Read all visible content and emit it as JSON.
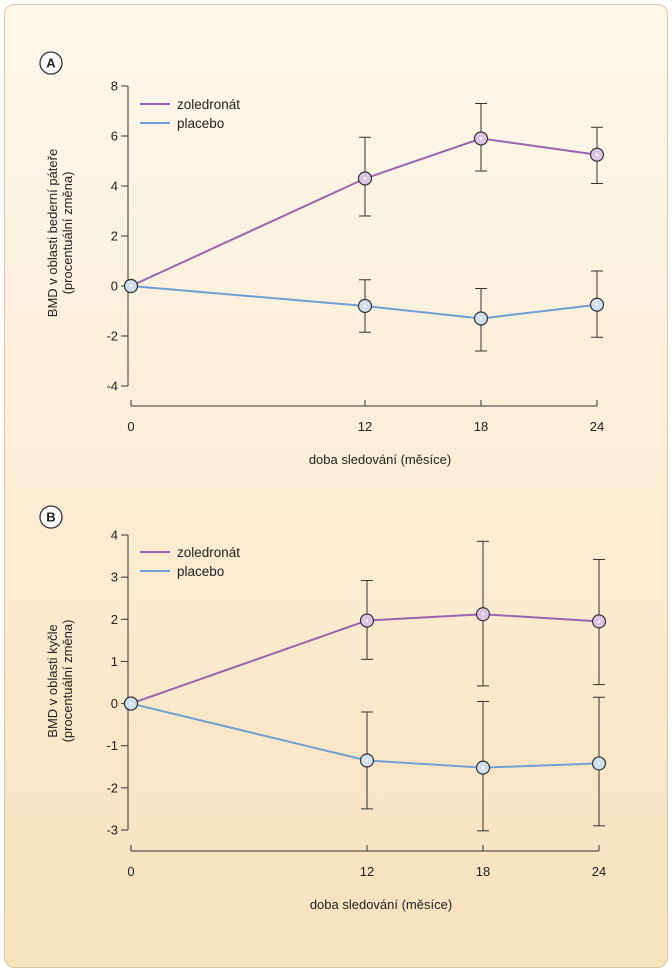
{
  "chart_data": [
    {
      "type": "line",
      "panel_label": "A",
      "xlabel": "doba sledování (měsíce)",
      "ylabel": [
        "BMD v oblasti bederní páteře",
        "(procentuální změna)"
      ],
      "x": [
        0,
        12,
        18,
        24
      ],
      "x_ticks": [
        "0",
        "12",
        "18",
        "24"
      ],
      "ylim": [
        -4,
        8
      ],
      "y_ticks": [
        8,
        6,
        4,
        2,
        0,
        -2,
        -4
      ],
      "legend_position": "top-left",
      "series": [
        {
          "name": "zoledronát",
          "color": "#9b64b0",
          "values": [
            0,
            4.3,
            5.9,
            5.25
          ],
          "err_low": [
            0,
            2.8,
            4.6,
            4.1
          ],
          "err_high": [
            0,
            5.95,
            7.3,
            6.35
          ]
        },
        {
          "name": "placebo",
          "color": "#6fa0d4",
          "values": [
            0,
            -0.8,
            -1.3,
            -0.75
          ],
          "err_low": [
            0,
            -1.85,
            -2.6,
            -2.05
          ],
          "err_high": [
            0,
            0.25,
            -0.1,
            0.6
          ]
        }
      ]
    },
    {
      "type": "line",
      "panel_label": "B",
      "xlabel": "doba sledování (měsíce)",
      "ylabel": [
        "BMD v oblasti kyčle",
        "(procentuální změna)"
      ],
      "x": [
        0,
        12,
        18,
        24
      ],
      "x_ticks": [
        "0",
        "12",
        "18",
        "24"
      ],
      "ylim": [
        -3,
        4
      ],
      "y_ticks": [
        4,
        3,
        2,
        1,
        0,
        -1,
        -2,
        -3
      ],
      "legend_position": "top-left",
      "series": [
        {
          "name": "zoledronát",
          "color": "#9b64b0",
          "values": [
            0,
            1.97,
            2.12,
            1.95
          ],
          "err_low": [
            0,
            1.05,
            0.42,
            0.45
          ],
          "err_high": [
            0,
            2.92,
            3.85,
            3.42
          ]
        },
        {
          "name": "placebo",
          "color": "#6fa0d4",
          "values": [
            0,
            -1.35,
            -1.52,
            -1.42
          ],
          "err_low": [
            0,
            -2.5,
            -3.02,
            -2.9
          ],
          "err_high": [
            0,
            -0.2,
            0.05,
            0.15
          ]
        }
      ]
    }
  ]
}
